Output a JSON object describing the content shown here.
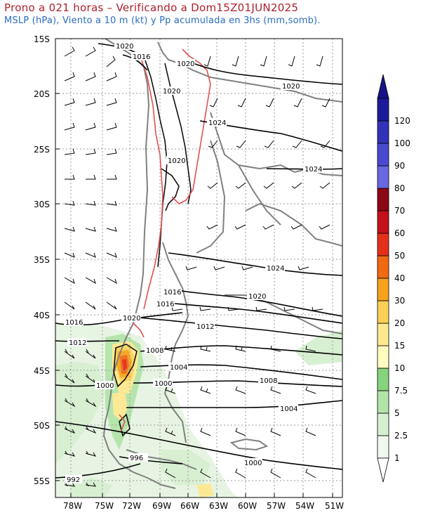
{
  "header": {
    "title": "Prono a 021 horas – Verificando a Dom15Z01JUN2025",
    "subtitle": "MSLP (hPa), Viento a 10 m (kt) y Pp acumulada en 3hs (mm,somb)."
  },
  "map": {
    "lat_ticks": [
      {
        "label": "15S",
        "value": -15
      },
      {
        "label": "20S",
        "value": -20
      },
      {
        "label": "25S",
        "value": -25
      },
      {
        "label": "30S",
        "value": -30
      },
      {
        "label": "35S",
        "value": -35
      },
      {
        "label": "40S",
        "value": -40
      },
      {
        "label": "45S",
        "value": -45
      },
      {
        "label": "50S",
        "value": -50
      },
      {
        "label": "55S",
        "value": -55
      }
    ],
    "lon_ticks": [
      {
        "label": "78W",
        "value": -78
      },
      {
        "label": "75W",
        "value": -75
      },
      {
        "label": "72W",
        "value": -72
      },
      {
        "label": "69W",
        "value": -69
      },
      {
        "label": "66W",
        "value": -66
      },
      {
        "label": "63W",
        "value": -63
      },
      {
        "label": "60W",
        "value": -60
      },
      {
        "label": "57W",
        "value": -57
      },
      {
        "label": "54W",
        "value": -54
      },
      {
        "label": "51W",
        "value": -51
      }
    ],
    "isobar_labels": [
      "1020",
      "1016",
      "1020",
      "1020",
      "1020",
      "1024",
      "1024",
      "1020",
      "1024",
      "1020",
      "1016",
      "1016",
      "1020",
      "1012",
      "1016",
      "1012",
      "1008",
      "1004",
      "1000",
      "1008",
      "1004",
      "1000",
      "996",
      "992",
      "1000"
    ]
  },
  "colorbar": {
    "labels": [
      "1",
      "2.5",
      "5",
      "7.5",
      "10",
      "15",
      "20",
      "30",
      "40",
      "50",
      "60",
      "70",
      "80",
      "90",
      "100",
      "120"
    ],
    "colors": [
      "#f2f8f0",
      "#d6efd0",
      "#b2e4a8",
      "#88d37e",
      "#fffcc0",
      "#fde890",
      "#fbd057",
      "#f6a21c",
      "#f06a14",
      "#e4301a",
      "#c4101a",
      "#8c0814",
      "#6868e0",
      "#4a4ad0",
      "#3232b8",
      "#1c1c9a"
    ]
  }
}
